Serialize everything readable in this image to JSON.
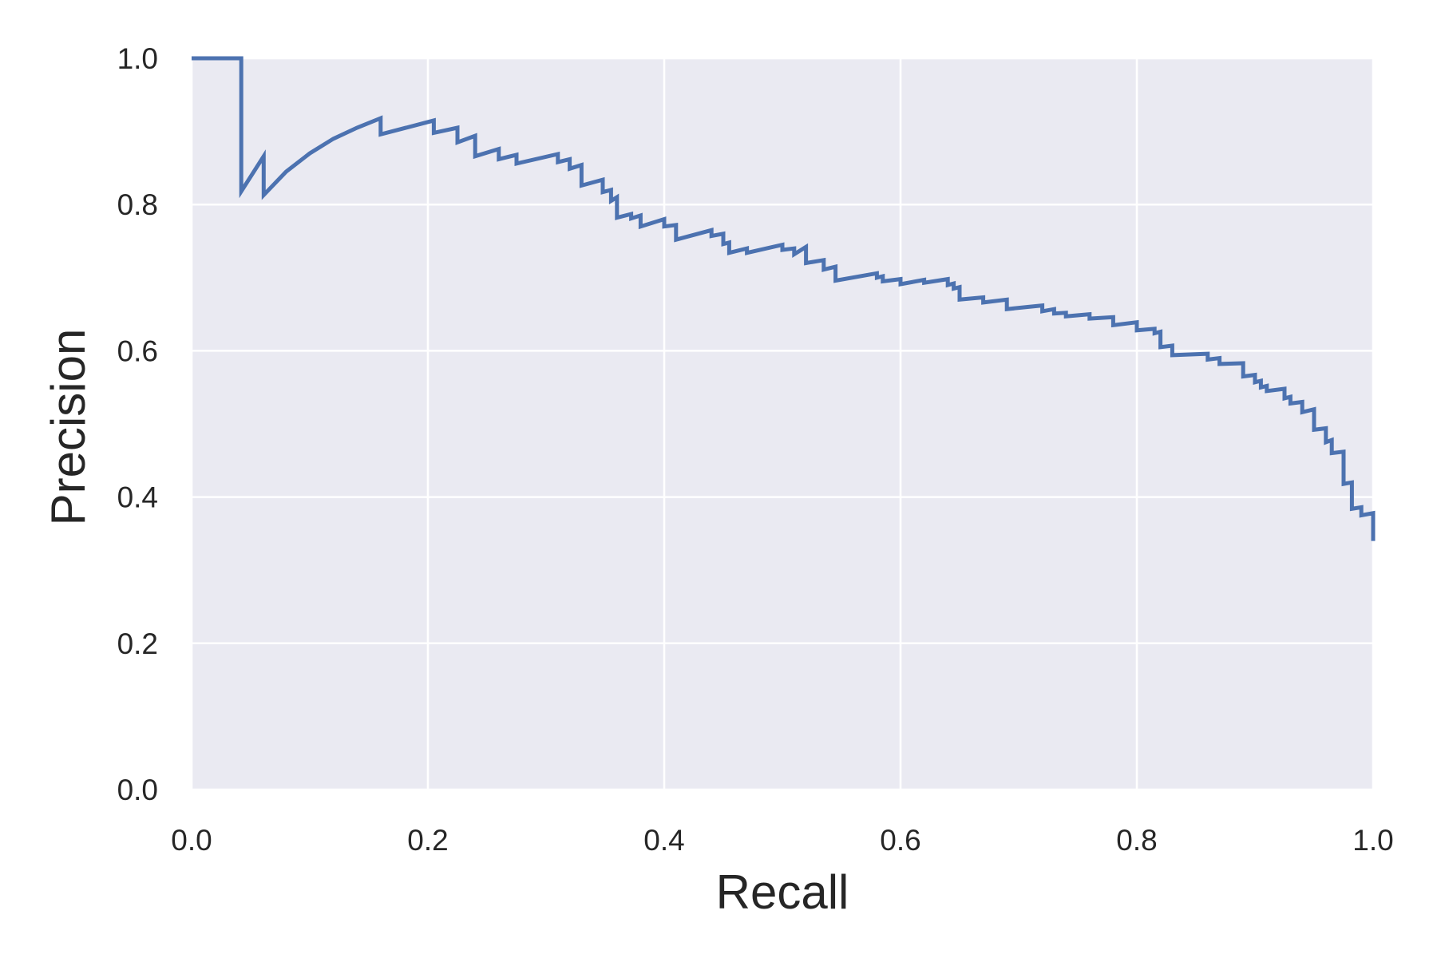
{
  "chart_data": {
    "type": "line",
    "title": "",
    "xlabel": "Recall",
    "ylabel": "Precision",
    "xlim": [
      0.0,
      1.0
    ],
    "ylim": [
      0.0,
      1.0
    ],
    "grid": true,
    "x_ticks": [
      "0.0",
      "0.2",
      "0.4",
      "0.6",
      "0.8",
      "1.0"
    ],
    "y_ticks": [
      "0.0",
      "0.2",
      "0.4",
      "0.6",
      "0.8",
      "1.0"
    ],
    "colors": {
      "background": "#eaeaf2",
      "grid": "#ffffff",
      "line": "#4c72b0",
      "text": "#262626"
    },
    "series": [
      {
        "x": [
          0.0,
          0.042,
          0.042,
          0.061,
          0.061,
          0.08,
          0.1,
          0.12,
          0.14,
          0.16,
          0.16,
          0.205,
          0.205,
          0.225,
          0.225,
          0.24,
          0.24,
          0.26,
          0.26,
          0.275,
          0.275,
          0.31,
          0.31,
          0.32,
          0.32,
          0.33,
          0.33,
          0.348,
          0.348,
          0.355,
          0.355,
          0.36,
          0.36,
          0.372,
          0.372,
          0.38,
          0.38,
          0.4,
          0.4,
          0.41,
          0.41,
          0.44,
          0.44,
          0.45,
          0.45,
          0.455,
          0.455,
          0.47,
          0.47,
          0.5,
          0.5,
          0.51,
          0.51,
          0.52,
          0.52,
          0.535,
          0.535,
          0.545,
          0.545,
          0.58,
          0.58,
          0.585,
          0.585,
          0.6,
          0.6,
          0.62,
          0.62,
          0.64,
          0.64,
          0.645,
          0.645,
          0.65,
          0.65,
          0.67,
          0.67,
          0.69,
          0.69,
          0.72,
          0.72,
          0.73,
          0.73,
          0.74,
          0.74,
          0.76,
          0.76,
          0.78,
          0.78,
          0.8,
          0.8,
          0.815,
          0.815,
          0.82,
          0.82,
          0.83,
          0.83,
          0.86,
          0.86,
          0.87,
          0.87,
          0.89,
          0.89,
          0.9,
          0.9,
          0.905,
          0.905,
          0.91,
          0.91,
          0.925,
          0.925,
          0.93,
          0.93,
          0.94,
          0.94,
          0.95,
          0.95,
          0.96,
          0.96,
          0.965,
          0.965,
          0.975,
          0.975,
          0.982,
          0.982,
          0.99,
          0.99,
          1.0,
          1.0
        ],
        "y": [
          1.0,
          1.0,
          0.818,
          0.866,
          0.813,
          0.845,
          0.87,
          0.89,
          0.905,
          0.918,
          0.896,
          0.915,
          0.898,
          0.905,
          0.885,
          0.894,
          0.866,
          0.876,
          0.862,
          0.868,
          0.856,
          0.869,
          0.858,
          0.862,
          0.849,
          0.854,
          0.826,
          0.834,
          0.817,
          0.82,
          0.805,
          0.81,
          0.782,
          0.787,
          0.781,
          0.785,
          0.77,
          0.78,
          0.77,
          0.772,
          0.752,
          0.765,
          0.757,
          0.76,
          0.746,
          0.748,
          0.734,
          0.74,
          0.734,
          0.745,
          0.738,
          0.74,
          0.732,
          0.742,
          0.72,
          0.724,
          0.711,
          0.715,
          0.696,
          0.706,
          0.7,
          0.702,
          0.695,
          0.698,
          0.691,
          0.697,
          0.693,
          0.698,
          0.69,
          0.692,
          0.685,
          0.687,
          0.67,
          0.673,
          0.666,
          0.67,
          0.657,
          0.662,
          0.654,
          0.657,
          0.651,
          0.652,
          0.647,
          0.65,
          0.644,
          0.646,
          0.635,
          0.639,
          0.628,
          0.63,
          0.624,
          0.626,
          0.605,
          0.607,
          0.594,
          0.596,
          0.588,
          0.59,
          0.582,
          0.583,
          0.565,
          0.567,
          0.557,
          0.559,
          0.55,
          0.552,
          0.545,
          0.548,
          0.535,
          0.537,
          0.528,
          0.53,
          0.516,
          0.52,
          0.492,
          0.494,
          0.475,
          0.478,
          0.46,
          0.462,
          0.418,
          0.42,
          0.384,
          0.386,
          0.375,
          0.378,
          0.34
        ]
      }
    ]
  }
}
